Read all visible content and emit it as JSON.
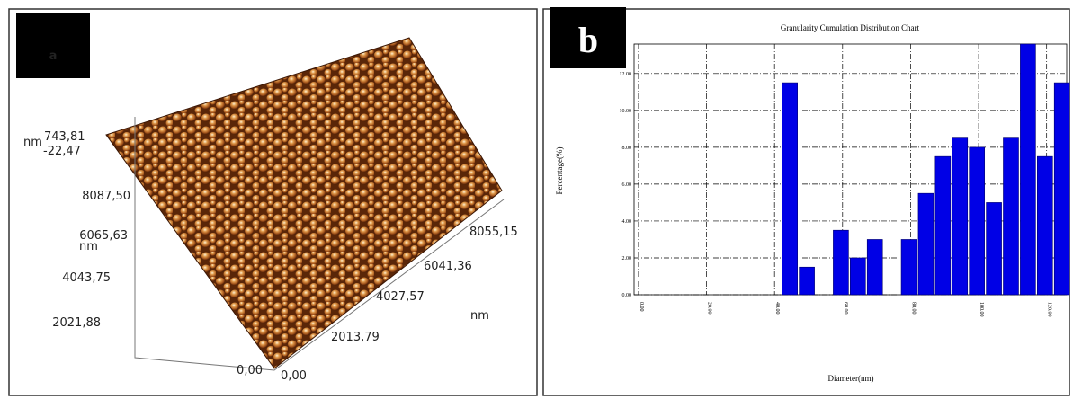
{
  "image_panel": {
    "panel_label": "a",
    "z_unit": "nm",
    "z_max": "743,81",
    "z_min": "-22,47",
    "y_axis_labels": [
      "8087,50",
      "6065,63",
      "4043,75",
      "2021,88",
      "0,00"
    ],
    "y_unit": "nm",
    "x_axis_labels": [
      "0,00",
      "2013,79",
      "4027,57",
      "6041,36",
      "8055,15"
    ],
    "x_unit": "nm"
  },
  "chart_data": {
    "type": "bar",
    "panel_label": "b",
    "title": "Granularity Cumulation Distribution  Chart",
    "x_label": "Diameter(nm)",
    "y_label": "Percentage(%)",
    "x": [
      44.5,
      49.5,
      59.5,
      64.5,
      69.5,
      79.5,
      84.5,
      89.5,
      94.5,
      99.5,
      104.5,
      109.5,
      114.5,
      119.5,
      124.5
    ],
    "values": [
      11.5,
      1.5,
      3.5,
      2.0,
      3.0,
      3.0,
      5.5,
      7.5,
      8.5,
      8.0,
      5.0,
      8.5,
      13.6,
      7.5,
      11.5
    ],
    "color": "#0000e6",
    "xlim": [
      -1.3,
      125.9
    ],
    "xticks": [
      {
        "value": 0,
        "label": "0.00"
      },
      {
        "value": 20,
        "label": "20.00"
      },
      {
        "value": 40,
        "label": "40.00"
      },
      {
        "value": 60,
        "label": "60.00"
      },
      {
        "value": 80,
        "label": "80.00"
      },
      {
        "value": 100,
        "label": "100.00"
      },
      {
        "value": 120,
        "label": "120.00"
      }
    ],
    "ylim": [
      0,
      13.6
    ],
    "yticks": [
      {
        "value": 0,
        "label": "0.00"
      },
      {
        "value": 2,
        "label": "2.00"
      },
      {
        "value": 4,
        "label": "4.00"
      },
      {
        "value": 6,
        "label": "6.00"
      },
      {
        "value": 8,
        "label": "8.00"
      },
      {
        "value": 10,
        "label": "10.00"
      },
      {
        "value": 12,
        "label": "12.00"
      }
    ],
    "grid": true
  }
}
